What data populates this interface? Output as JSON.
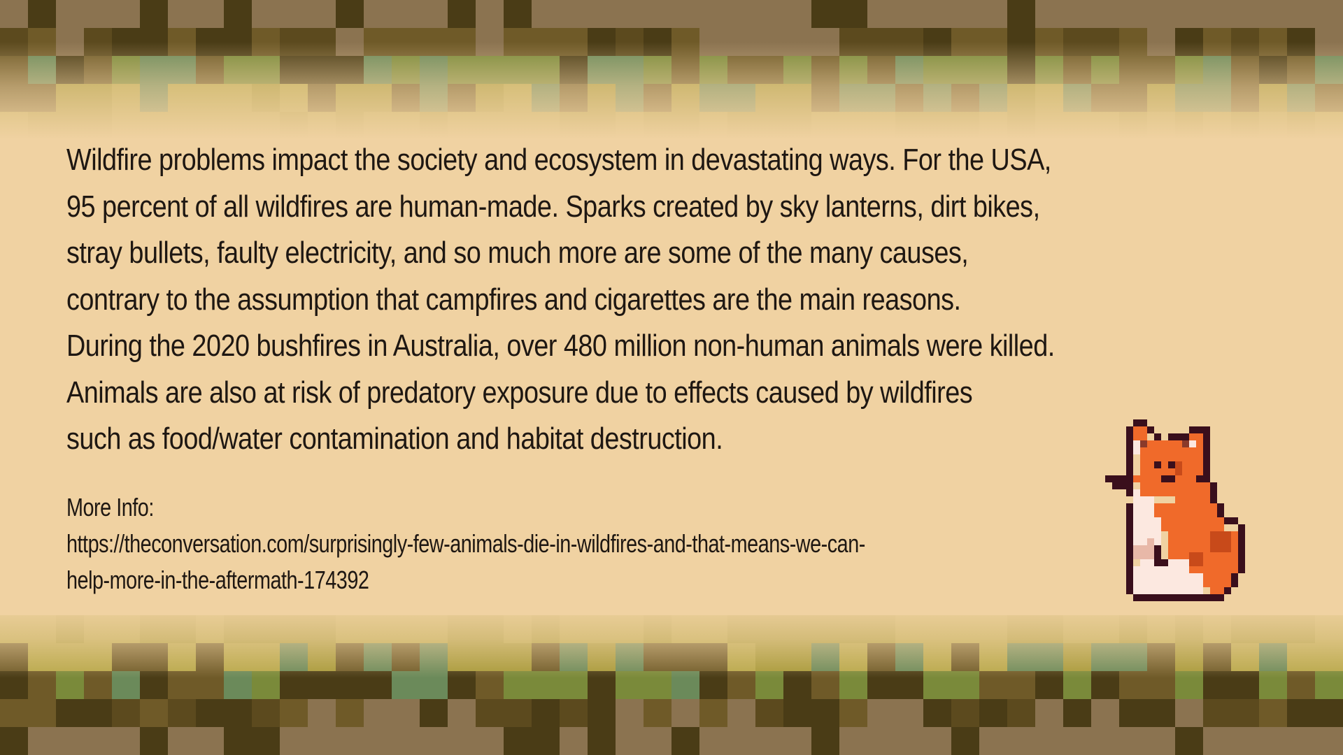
{
  "body_lines": [
    "Wildfire problems impact the society and ecosystem in devastating ways. For the USA,",
    "95 percent of all wildfires are human-made. Sparks created by sky lanterns, dirt bikes,",
    "stray bullets, faulty electricity, and so much more are some of the many causes,",
    "contrary to the assumption that campfires and cigarettes are the main reasons.",
    "During the 2020 bushfires in Australia, over 480 million non-human animals were killed.",
    "Animals are also at risk of predatory exposure due to effects caused by wildfires",
    "such as food/water contamination and habitat destruction."
  ],
  "more_info": {
    "label": "More Info:",
    "url_line_1": "https://theconversation.com/surprisingly-few-animals-die-in-wildfires-and-that-means-we-can-",
    "url_line_2": "help-more-in-the-aftermath-174392"
  },
  "colors": {
    "background": "#f0d2a2",
    "text": "#1e1712",
    "border_palette": [
      "#8b7350",
      "#6f5a28",
      "#4a3c16",
      "#7a8a3a",
      "#a89a3a",
      "#b8a84a",
      "#6b8a5a",
      "#5c4a1e"
    ],
    "fox_orange": "#f06a2a",
    "fox_outline": "#3a0f1c",
    "fox_white": "#fce8e0"
  },
  "sprite": {
    "name": "fox-sprite-icon"
  }
}
